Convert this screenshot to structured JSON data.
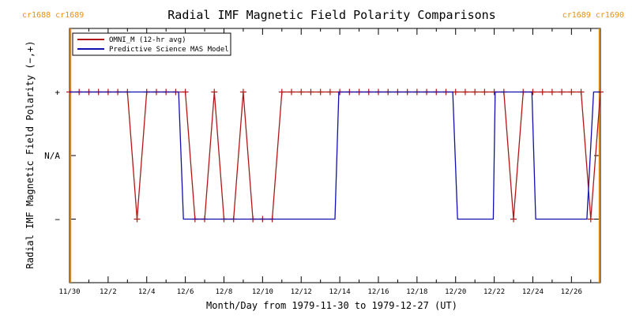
{
  "chart_data": {
    "type": "line",
    "title": "Radial IMF Magnetic Field Polarity Comparisons",
    "xlabel": "Month/Day from 1979-11-30 to 1979-12-27 (UT)",
    "ylabel": "Radial IMF Magnetic Field Polarity (−,+)",
    "x_ticks": [
      "11/30",
      "12/2",
      "12/4",
      "12/6",
      "12/8",
      "12/10",
      "12/12",
      "12/14",
      "12/16",
      "12/18",
      "12/20",
      "12/22",
      "12/24",
      "12/26"
    ],
    "x_tick_days": [
      0,
      2,
      4,
      6,
      8,
      10,
      12,
      14,
      16,
      18,
      20,
      22,
      24,
      26
    ],
    "xlim_days": [
      0,
      27.5
    ],
    "y_ticks": [
      "+",
      "N/A",
      "−"
    ],
    "y_tick_values": [
      1,
      0,
      -1
    ],
    "ylim": [
      -2,
      2
    ],
    "carrington_markers": [
      {
        "day": 0.05,
        "label": "cr1688 cr1689",
        "color": "#e8900f"
      },
      {
        "day": 27.45,
        "label": "cr1689 cr1690",
        "color": "#e8900f"
      }
    ],
    "series": [
      {
        "name": "OMNI_M (12-hr avg)",
        "color": "#b01818",
        "marker": "+",
        "x": [
          0.0,
          0.5,
          1.0,
          1.5,
          2.0,
          2.5,
          3.0,
          3.5,
          4.0,
          4.5,
          5.0,
          5.5,
          6.0,
          6.5,
          7.0,
          7.5,
          8.0,
          8.5,
          9.0,
          9.5,
          10.0,
          10.5,
          11.0,
          11.5,
          12.0,
          12.5,
          13.0,
          13.5,
          14.0,
          14.5,
          15.0,
          15.5,
          16.0,
          16.5,
          17.0,
          17.5,
          18.0,
          18.5,
          19.0,
          19.5,
          20.0,
          20.5,
          21.0,
          21.5,
          22.0,
          22.5,
          23.0,
          23.5,
          24.0,
          24.5,
          25.0,
          25.5,
          26.0,
          26.5,
          27.0,
          27.5
        ],
        "y": [
          1,
          1,
          1,
          1,
          1,
          1,
          1,
          -1,
          1,
          1,
          1,
          1,
          1,
          -1,
          -1,
          1,
          -1,
          -1,
          1,
          -1,
          -1,
          -1,
          1,
          1,
          1,
          1,
          1,
          1,
          1,
          1,
          1,
          1,
          1,
          1,
          1,
          1,
          1,
          1,
          1,
          1,
          1,
          1,
          1,
          1,
          1,
          1,
          -1,
          1,
          1,
          1,
          1,
          1,
          1,
          1,
          -1,
          1
        ]
      },
      {
        "name": "Predictive Science MAS Model",
        "color": "#1010b0",
        "marker": "none",
        "x": [
          0.0,
          5.65,
          5.9,
          13.75,
          13.95,
          19.85,
          20.1,
          21.95,
          22.05,
          23.95,
          24.15,
          26.8,
          27.15,
          27.5
        ],
        "y": [
          1,
          1,
          -1,
          -1,
          1,
          1,
          -1,
          -1,
          1,
          1,
          -1,
          -1,
          1,
          1
        ]
      }
    ],
    "legend_position": "top-left",
    "grid": false
  }
}
